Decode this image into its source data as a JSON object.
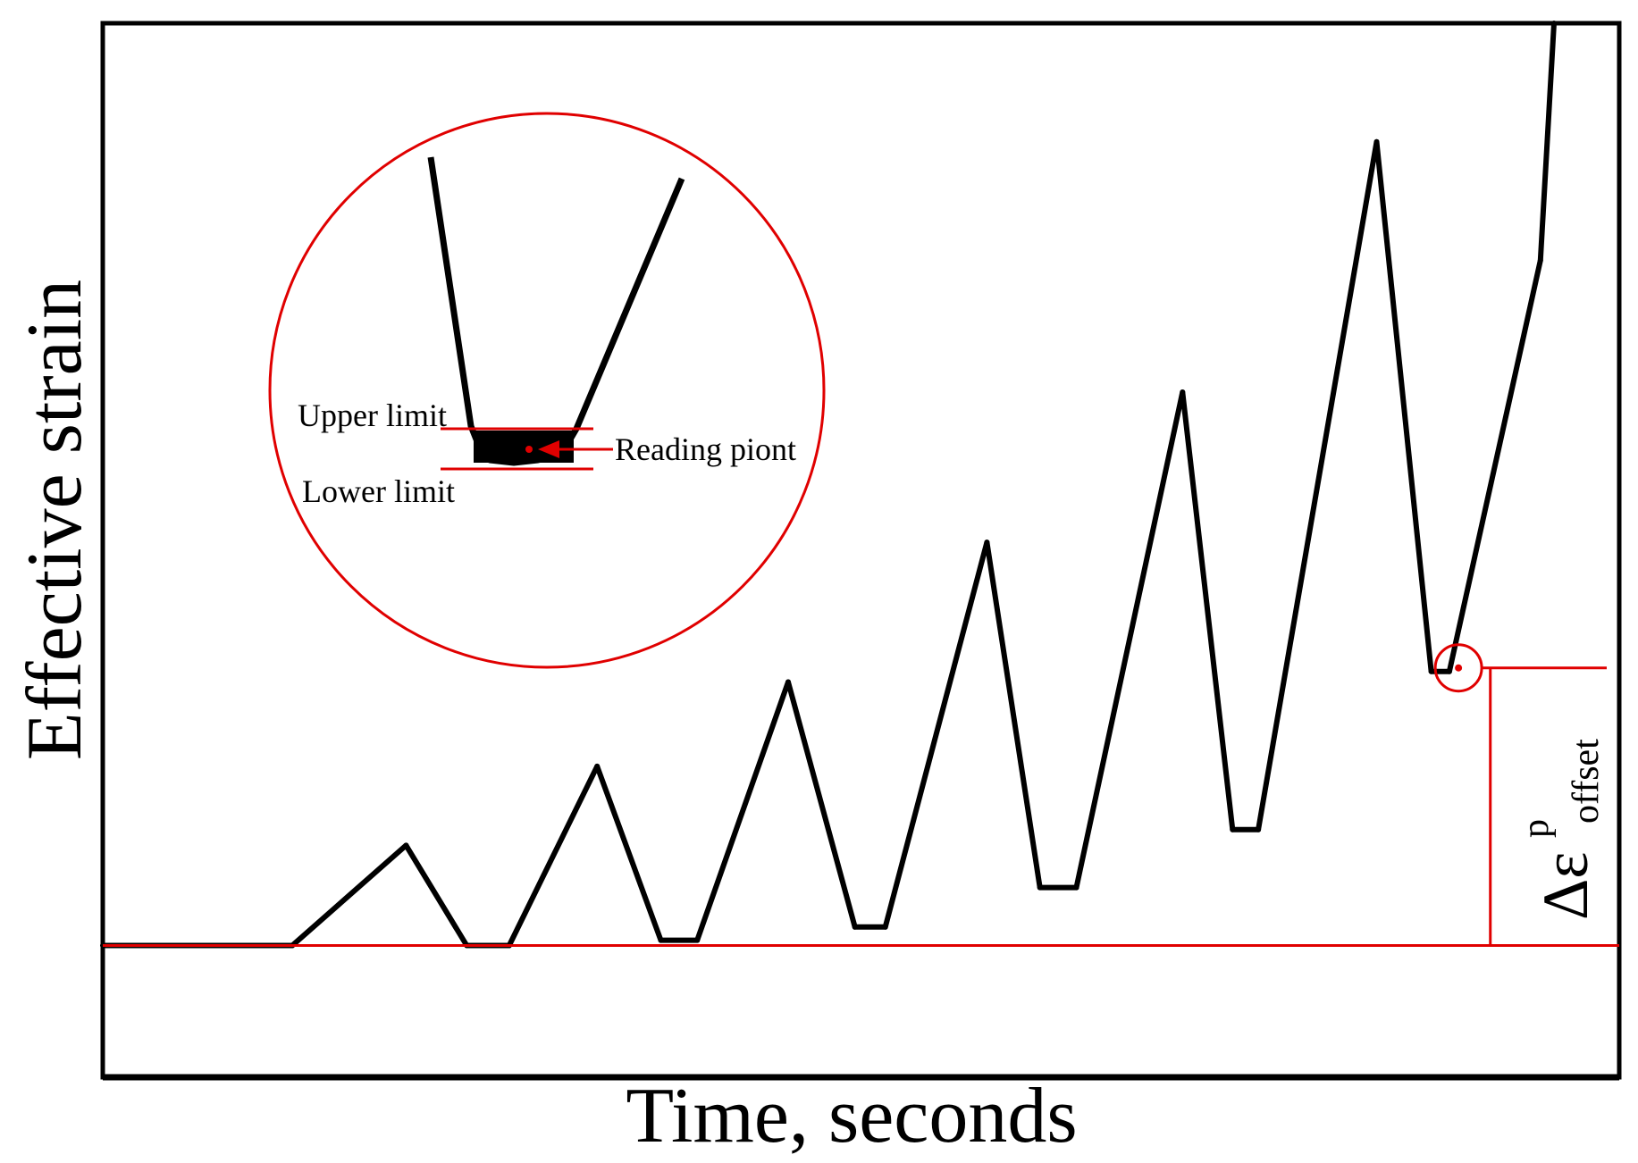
{
  "chart_data": {
    "type": "line",
    "title": "",
    "xlabel": "Time, seconds",
    "ylabel": "Effective strain",
    "grid": false,
    "legend": "none",
    "xlim": [
      0,
      1000
    ],
    "ylim": [
      -0.5,
      3.5
    ],
    "series": [
      {
        "values": [
          [
            0,
            0.0
          ],
          [
            125,
            0.0
          ],
          [
            200,
            0.38
          ],
          [
            240,
            0.0
          ],
          [
            268,
            0.0
          ],
          [
            326,
            0.68
          ],
          [
            368,
            0.02
          ],
          [
            392,
            0.02
          ],
          [
            452,
            1.0
          ],
          [
            496,
            0.07
          ],
          [
            516,
            0.07
          ],
          [
            583,
            1.53
          ],
          [
            618,
            0.22
          ],
          [
            642,
            0.22
          ],
          [
            712,
            2.1
          ],
          [
            745,
            0.44
          ],
          [
            762,
            0.44
          ],
          [
            840,
            3.05
          ],
          [
            876,
            1.04
          ],
          [
            888,
            1.04
          ],
          [
            948,
            2.6
          ],
          [
            957,
            3.5
          ]
        ]
      }
    ],
    "reference_line": {
      "y": 0.0,
      "color": "#e00000"
    },
    "annotations": {
      "inset": {
        "upper_limit_label": "Upper limit",
        "lower_limit_label": "Lower limit",
        "reading_point_label": "Reading piont"
      },
      "offset_label": {
        "delta": "Δε",
        "superscript": "p",
        "subscript": "offset"
      }
    },
    "colors": {
      "curve": "#000000",
      "annotation": "#e00000",
      "reading_point": "#e00000"
    }
  }
}
